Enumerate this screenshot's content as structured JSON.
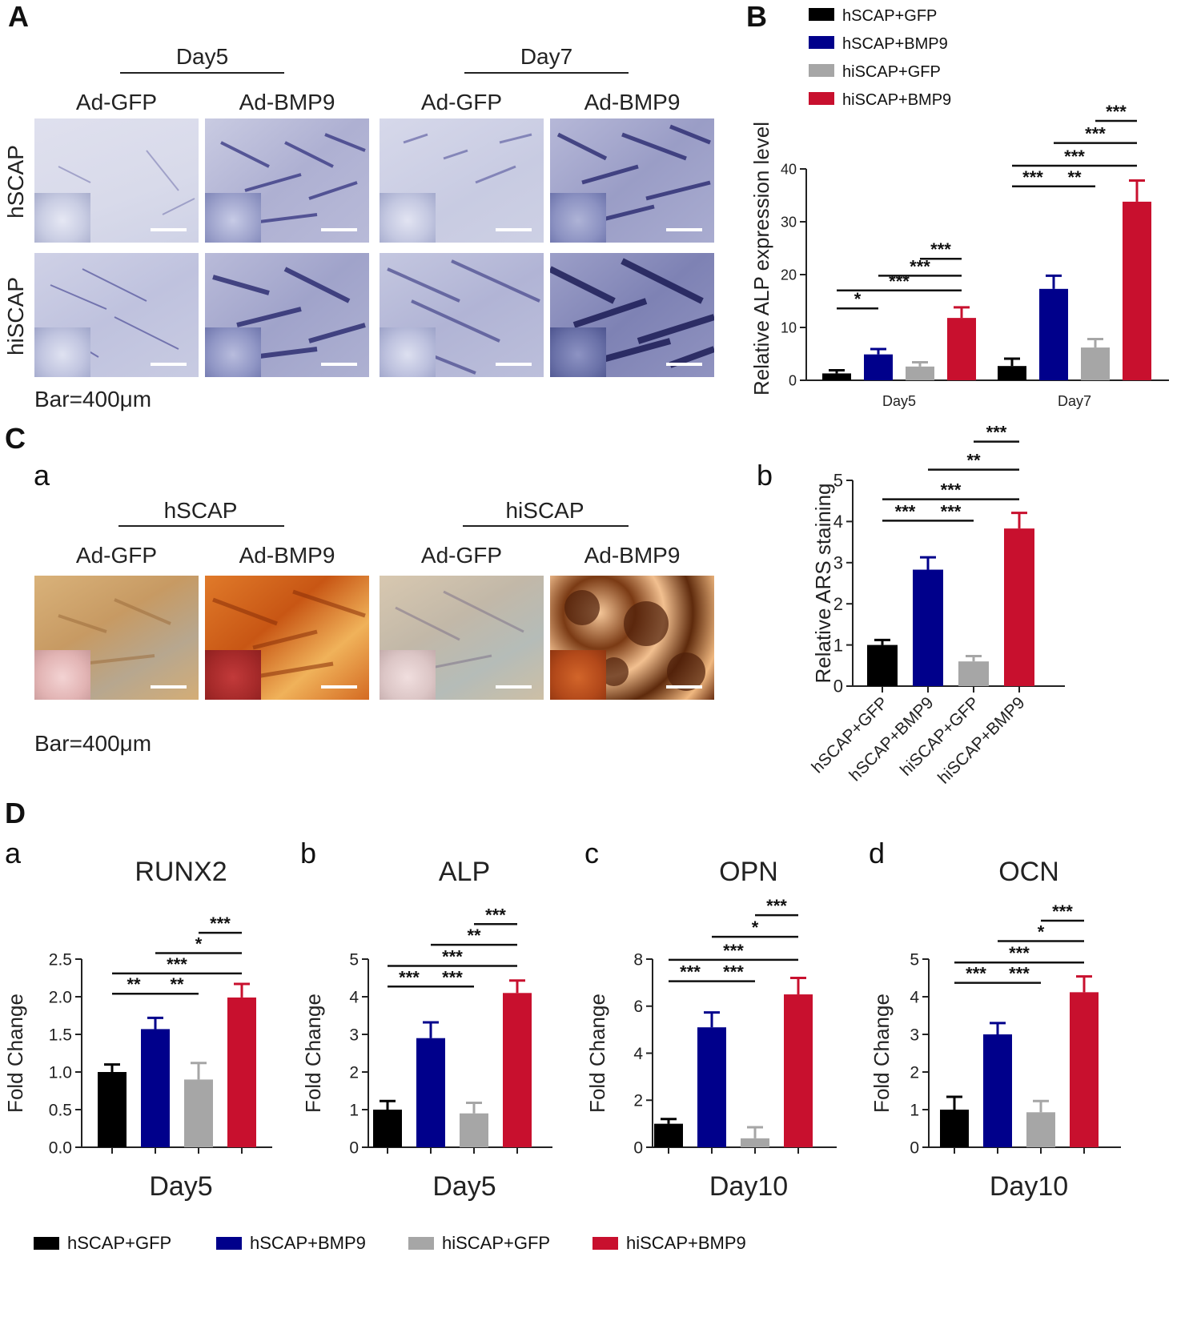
{
  "panels": {
    "A": "A",
    "B": "B",
    "C": "C",
    "D": "D",
    "Ca": "a",
    "Cb": "b",
    "Da": "a",
    "Db": "b",
    "Dc": "c",
    "Dd": "d"
  },
  "panel_a": {
    "day_headers": [
      "Day5",
      "Day7"
    ],
    "col_headers": [
      "Ad-GFP",
      "Ad-BMP9",
      "Ad-GFP",
      "Ad-BMP9"
    ],
    "row_labels": [
      "hSCAP",
      "hiSCAP"
    ],
    "scale_note": "Bar=400μm"
  },
  "panel_ca": {
    "group_headers": [
      "hSCAP",
      "hiSCAP"
    ],
    "col_headers": [
      "Ad-GFP",
      "Ad-BMP9",
      "Ad-GFP",
      "Ad-BMP9"
    ],
    "scale_note": "Bar=400μm"
  },
  "colors": {
    "hSCAP+GFP": "#000000",
    "hSCAP+BMP9": "#00008b",
    "hiSCAP+GFP": "#a6a6a6",
    "hiSCAP+BMP9": "#c8102e"
  },
  "legend_d": [
    "hSCAP+GFP",
    "hSCAP+BMP9",
    "hiSCAP+GFP",
    "hiSCAP+BMP9"
  ],
  "chart_data": [
    {
      "id": "B",
      "type": "bar",
      "ylabel": "Relative ALP expression level",
      "ylim": [
        0,
        40
      ],
      "yticks": [
        0,
        10,
        20,
        30,
        40
      ],
      "categories": [
        "Day5",
        "Day7"
      ],
      "legend": [
        "hSCAP+GFP",
        "hSCAP+BMP9",
        "hiSCAP+GFP",
        "hiSCAP+BMP9"
      ],
      "legend_position": "top",
      "series": [
        {
          "name": "hSCAP+GFP",
          "values": [
            1.3,
            2.7
          ],
          "errors": [
            0.6,
            1.4
          ]
        },
        {
          "name": "hSCAP+BMP9",
          "values": [
            4.9,
            17.3
          ],
          "errors": [
            1.0,
            2.5
          ]
        },
        {
          "name": "hiSCAP+GFP",
          "values": [
            2.6,
            6.2
          ],
          "errors": [
            0.8,
            1.6
          ]
        },
        {
          "name": "hiSCAP+BMP9",
          "values": [
            11.8,
            33.8
          ],
          "errors": [
            2.0,
            4.0
          ]
        }
      ],
      "significance": [
        {
          "group": 0,
          "from": 0,
          "to": 1,
          "y": 13.6,
          "label": "*"
        },
        {
          "group": 0,
          "from": 0,
          "to": 3,
          "y": 17.0,
          "label": "***"
        },
        {
          "group": 0,
          "from": 1,
          "to": 3,
          "y": 19.8,
          "label": "***"
        },
        {
          "group": 0,
          "from": 2,
          "to": 3,
          "y": 23.0,
          "label": "***"
        },
        {
          "group": 1,
          "from": 0,
          "to": 1,
          "y": 36.7,
          "label": "***"
        },
        {
          "group": 1,
          "from": 1,
          "to": 2,
          "y": 36.7,
          "label": "**"
        },
        {
          "group": 1,
          "from": 0,
          "to": 3,
          "y": 40.6,
          "label": "***"
        },
        {
          "group": 1,
          "from": 1,
          "to": 3,
          "y": 44.9,
          "label": "***"
        },
        {
          "group": 1,
          "from": 2,
          "to": 3,
          "y": 49.1,
          "label": "***"
        }
      ]
    },
    {
      "id": "Cb",
      "type": "bar",
      "ylabel": "Relative ARS staining",
      "ylim": [
        0,
        5
      ],
      "yticks": [
        0,
        1,
        2,
        3,
        4,
        5
      ],
      "categories": [
        "hSCAP+GFP",
        "hSCAP+BMP9",
        "hiSCAP+GFP",
        "hiSCAP+BMP9"
      ],
      "values": [
        1.0,
        2.83,
        0.6,
        3.83
      ],
      "errors": [
        0.12,
        0.3,
        0.13,
        0.38
      ],
      "significance": [
        {
          "from": 0,
          "to": 1,
          "y": 4.02,
          "label": "***"
        },
        {
          "from": 1,
          "to": 2,
          "y": 4.02,
          "label": "***"
        },
        {
          "from": 0,
          "to": 3,
          "y": 4.54,
          "label": "***"
        },
        {
          "from": 1,
          "to": 3,
          "y": 5.26,
          "label": "**"
        },
        {
          "from": 2,
          "to": 3,
          "y": 5.94,
          "label": "***"
        }
      ]
    },
    {
      "id": "Da",
      "type": "bar",
      "title": "RUNX2",
      "xlabel": "Day5",
      "ylabel": "Fold Change",
      "ylim": [
        0,
        2.5
      ],
      "yticks": [
        "0.0",
        "0.5",
        "1.0",
        "1.5",
        "2.0",
        "2.5"
      ],
      "categories": [
        "hSCAP+GFP",
        "hSCAP+BMP9",
        "hiSCAP+GFP",
        "hiSCAP+BMP9"
      ],
      "values": [
        1.0,
        1.57,
        0.9,
        1.99
      ],
      "errors": [
        0.1,
        0.15,
        0.22,
        0.18
      ],
      "significance": [
        {
          "from": 0,
          "to": 1,
          "y": 2.04,
          "label": "**"
        },
        {
          "from": 1,
          "to": 2,
          "y": 2.04,
          "label": "**"
        },
        {
          "from": 0,
          "to": 3,
          "y": 2.31,
          "label": "***"
        },
        {
          "from": 1,
          "to": 3,
          "y": 2.58,
          "label": "*"
        },
        {
          "from": 2,
          "to": 3,
          "y": 2.85,
          "label": "***"
        }
      ]
    },
    {
      "id": "Db",
      "type": "bar",
      "title": "ALP",
      "xlabel": "Day5",
      "ylabel": "Fold Change",
      "ylim": [
        0,
        5
      ],
      "yticks": [
        "0",
        "1",
        "2",
        "3",
        "4",
        "5"
      ],
      "categories": [
        "hSCAP+GFP",
        "hSCAP+BMP9",
        "hiSCAP+GFP",
        "hiSCAP+BMP9"
      ],
      "values": [
        1.0,
        2.9,
        0.9,
        4.1
      ],
      "errors": [
        0.23,
        0.42,
        0.28,
        0.33
      ],
      "significance": [
        {
          "from": 0,
          "to": 1,
          "y": 4.27,
          "label": "***"
        },
        {
          "from": 1,
          "to": 2,
          "y": 4.27,
          "label": "***"
        },
        {
          "from": 0,
          "to": 3,
          "y": 4.82,
          "label": "***"
        },
        {
          "from": 1,
          "to": 3,
          "y": 5.38,
          "label": "**"
        },
        {
          "from": 2,
          "to": 3,
          "y": 5.93,
          "label": "***"
        }
      ]
    },
    {
      "id": "Dc",
      "type": "bar",
      "title": "OPN",
      "xlabel": "Day10",
      "ylabel": "Fold Change",
      "ylim": [
        0,
        8
      ],
      "yticks": [
        "0",
        "2",
        "4",
        "6",
        "8"
      ],
      "categories": [
        "hSCAP+GFP",
        "hSCAP+BMP9",
        "hiSCAP+GFP",
        "hiSCAP+BMP9"
      ],
      "values": [
        1.0,
        5.1,
        0.38,
        6.5
      ],
      "errors": [
        0.2,
        0.63,
        0.47,
        0.7
      ],
      "significance": [
        {
          "from": 0,
          "to": 1,
          "y": 7.06,
          "label": "***"
        },
        {
          "from": 1,
          "to": 2,
          "y": 7.06,
          "label": "***"
        },
        {
          "from": 0,
          "to": 3,
          "y": 7.97,
          "label": "***"
        },
        {
          "from": 1,
          "to": 3,
          "y": 8.95,
          "label": "*"
        },
        {
          "from": 2,
          "to": 3,
          "y": 9.87,
          "label": "***"
        }
      ]
    },
    {
      "id": "Dd",
      "type": "bar",
      "title": "OCN",
      "xlabel": "Day10",
      "ylabel": "Fold Change",
      "ylim": [
        0,
        5
      ],
      "yticks": [
        "0",
        "1",
        "2",
        "3",
        "4",
        "5"
      ],
      "categories": [
        "hSCAP+GFP",
        "hSCAP+BMP9",
        "hiSCAP+GFP",
        "hiSCAP+BMP9"
      ],
      "values": [
        1.0,
        3.0,
        0.93,
        4.12
      ],
      "errors": [
        0.34,
        0.3,
        0.3,
        0.42
      ],
      "significance": [
        {
          "from": 0,
          "to": 1,
          "y": 4.37,
          "label": "***"
        },
        {
          "from": 1,
          "to": 2,
          "y": 4.37,
          "label": "***"
        },
        {
          "from": 0,
          "to": 3,
          "y": 4.91,
          "label": "***"
        },
        {
          "from": 1,
          "to": 3,
          "y": 5.48,
          "label": "*"
        },
        {
          "from": 2,
          "to": 3,
          "y": 6.02,
          "label": "***"
        }
      ]
    }
  ]
}
